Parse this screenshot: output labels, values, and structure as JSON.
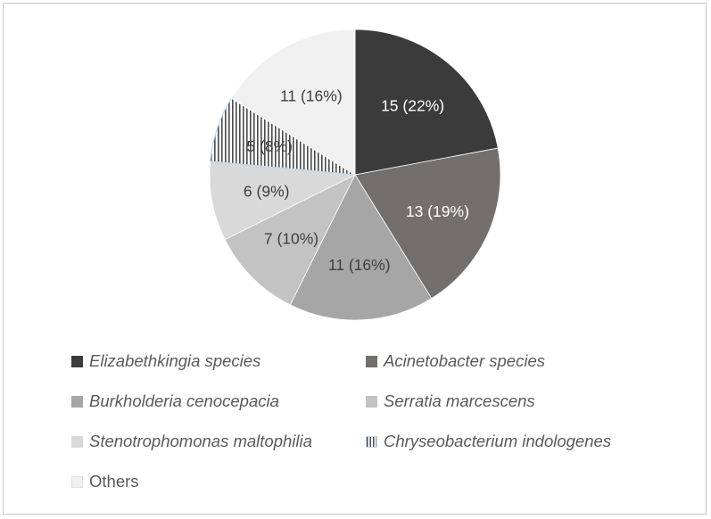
{
  "chart_data": {
    "type": "pie",
    "slices": [
      {
        "name": "Elizabethkingia species",
        "value": 15,
        "label": "15 (22%)",
        "color": "#3b3b3b",
        "label_color": "#ffffff",
        "pattern": "solid"
      },
      {
        "name": "Acinetobacter species",
        "value": 13,
        "label": "13 (19%)",
        "color": "#736f6d",
        "label_color": "#ffffff",
        "pattern": "solid"
      },
      {
        "name": "Burkholderia cenocepacia",
        "value": 11,
        "label": "11 (16%)",
        "color": "#a6a6a6",
        "label_color": "#404040",
        "pattern": "solid"
      },
      {
        "name": "Serratia marcescens",
        "value": 7,
        "label": "7 (10%)",
        "color": "#c3c3c3",
        "label_color": "#404040",
        "pattern": "solid"
      },
      {
        "name": "Stenotrophomonas maltophilia",
        "value": 6,
        "label": "6 (9%)",
        "color": "#d9d9d9",
        "label_color": "#404040",
        "pattern": "solid"
      },
      {
        "name": "Chryseobacterium indologenes",
        "value": 5,
        "label": "5 (8%)",
        "color": "#ffffff",
        "label_color": "#404040",
        "pattern": "vertical-stripes"
      },
      {
        "name": "Others",
        "value": 11,
        "label": "11 (16%)",
        "color": "#f0f0f0",
        "label_color": "#404040",
        "pattern": "solid"
      }
    ],
    "legend_position": "bottom",
    "legend": [
      {
        "label": "Elizabethkingia species",
        "italic": true
      },
      {
        "label": "Acinetobacter species",
        "italic": true
      },
      {
        "label": "Burkholderia cenocepacia",
        "italic": true
      },
      {
        "label": "Serratia marcescens",
        "italic": true
      },
      {
        "label": "Stenotrophomonas maltophilia",
        "italic": true
      },
      {
        "label": "Chryseobacterium indologenes",
        "italic": true
      },
      {
        "label": "Others",
        "italic": false
      }
    ]
  }
}
